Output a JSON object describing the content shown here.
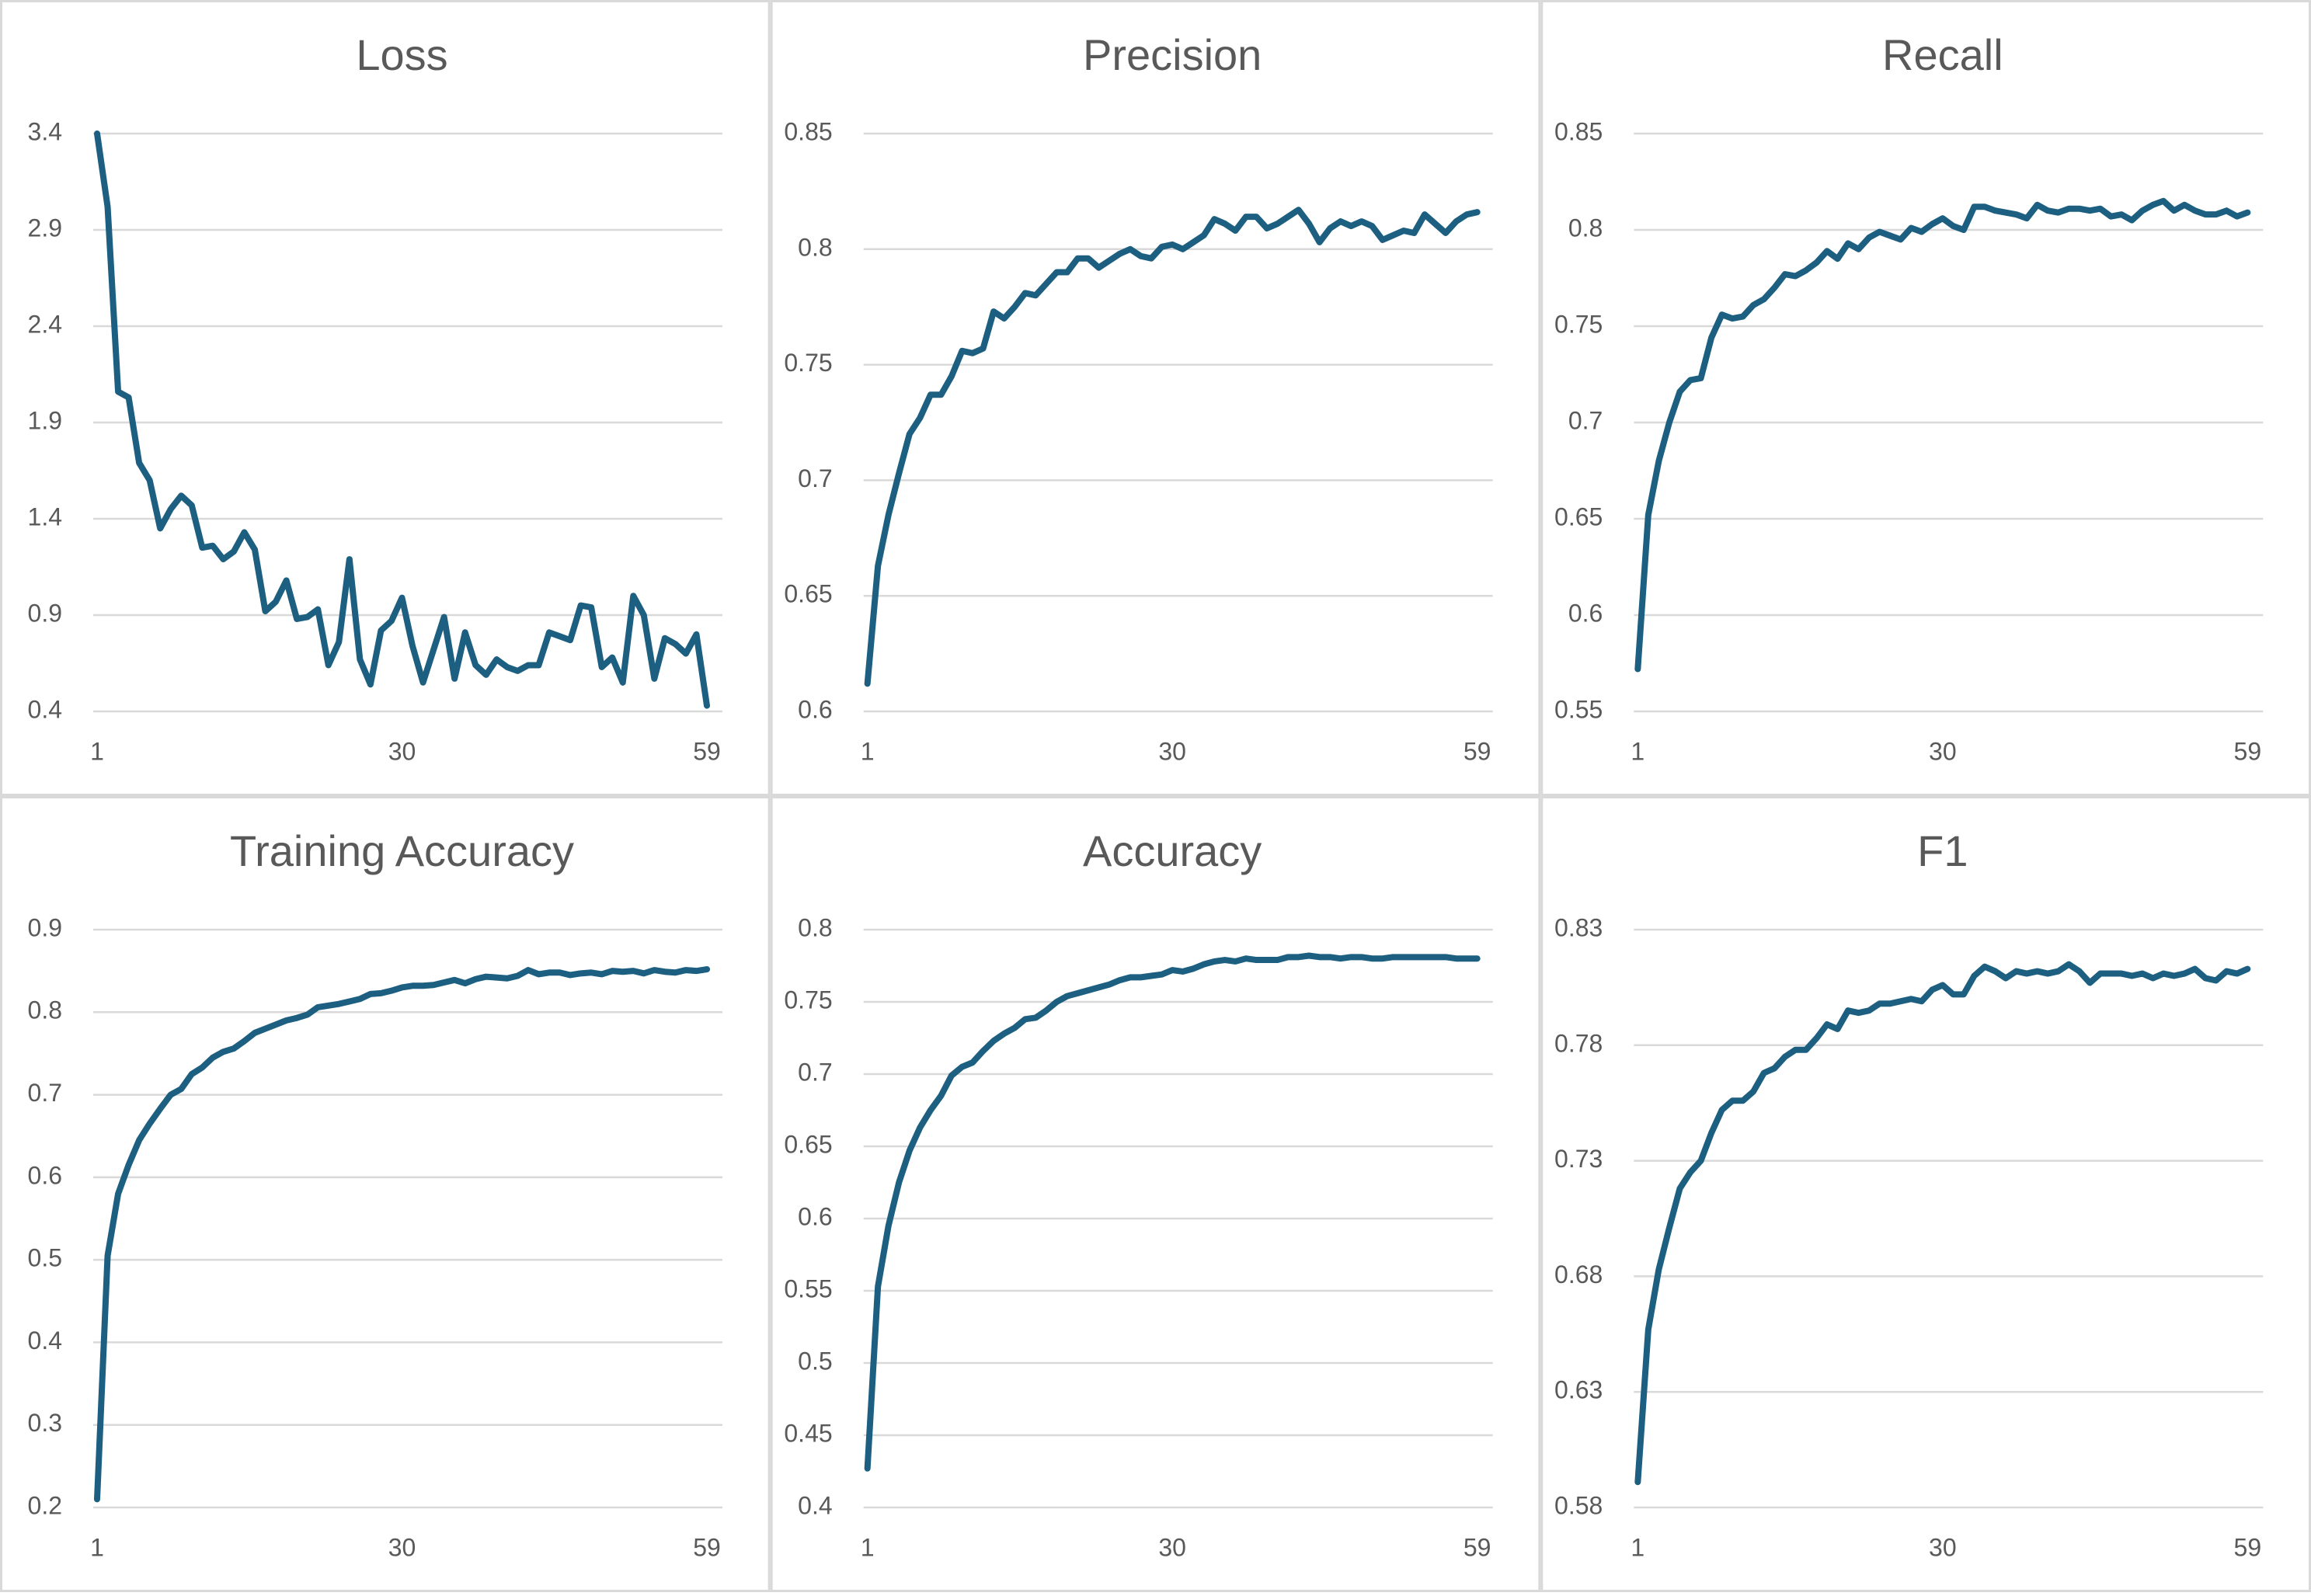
{
  "chart_data": [
    {
      "type": "line",
      "title": "Loss",
      "color": "#1d5f80",
      "grid": true,
      "x": [
        1,
        2,
        3,
        4,
        5,
        6,
        7,
        8,
        9,
        10,
        11,
        12,
        13,
        14,
        15,
        16,
        17,
        18,
        19,
        20,
        21,
        22,
        23,
        24,
        25,
        26,
        27,
        28,
        29,
        30,
        31,
        32,
        33,
        34,
        35,
        36,
        37,
        38,
        39,
        40,
        41,
        42,
        43,
        44,
        45,
        46,
        47,
        48,
        49,
        50,
        51,
        52,
        53,
        54,
        55,
        56,
        57,
        58,
        59
      ],
      "values": [
        3.4,
        3.02,
        2.06,
        2.03,
        1.69,
        1.6,
        1.35,
        1.45,
        1.52,
        1.47,
        1.25,
        1.26,
        1.19,
        1.23,
        1.33,
        1.24,
        0.92,
        0.97,
        1.08,
        0.88,
        0.89,
        0.93,
        0.64,
        0.76,
        1.19,
        0.67,
        0.54,
        0.82,
        0.87,
        0.99,
        0.74,
        0.55,
        0.72,
        0.89,
        0.57,
        0.81,
        0.64,
        0.59,
        0.67,
        0.63,
        0.61,
        0.64,
        0.64,
        0.81,
        0.79,
        0.77,
        0.95,
        0.94,
        0.63,
        0.68,
        0.55,
        1.0,
        0.9,
        0.57,
        0.78,
        0.75,
        0.7,
        0.8,
        0.43
      ],
      "xlim": [
        1,
        59
      ],
      "xticks": [
        1,
        30,
        59
      ],
      "ylim": [
        0.4,
        3.4
      ],
      "yticks": [
        0.4,
        0.9,
        1.4,
        1.9,
        2.4,
        2.9,
        3.4
      ]
    },
    {
      "type": "line",
      "title": "Precision",
      "color": "#1d5f80",
      "grid": true,
      "x": [
        1,
        2,
        3,
        4,
        5,
        6,
        7,
        8,
        9,
        10,
        11,
        12,
        13,
        14,
        15,
        16,
        17,
        18,
        19,
        20,
        21,
        22,
        23,
        24,
        25,
        26,
        27,
        28,
        29,
        30,
        31,
        32,
        33,
        34,
        35,
        36,
        37,
        38,
        39,
        40,
        41,
        42,
        43,
        44,
        45,
        46,
        47,
        48,
        49,
        50,
        51,
        52,
        53,
        54,
        55,
        56,
        57,
        58,
        59
      ],
      "values": [
        0.612,
        0.663,
        0.685,
        0.703,
        0.72,
        0.727,
        0.737,
        0.737,
        0.745,
        0.756,
        0.755,
        0.757,
        0.773,
        0.77,
        0.775,
        0.781,
        0.78,
        0.785,
        0.79,
        0.79,
        0.796,
        0.796,
        0.792,
        0.795,
        0.798,
        0.8,
        0.797,
        0.796,
        0.801,
        0.802,
        0.8,
        0.803,
        0.806,
        0.813,
        0.811,
        0.808,
        0.814,
        0.814,
        0.809,
        0.811,
        0.814,
        0.817,
        0.811,
        0.803,
        0.809,
        0.812,
        0.81,
        0.812,
        0.81,
        0.804,
        0.806,
        0.808,
        0.807,
        0.815,
        0.811,
        0.807,
        0.812,
        0.815,
        0.816
      ],
      "xlim": [
        1,
        59
      ],
      "xticks": [
        1,
        30,
        59
      ],
      "ylim": [
        0.6,
        0.85
      ],
      "yticks": [
        0.6,
        0.65,
        0.7,
        0.75,
        0.8,
        0.85
      ]
    },
    {
      "type": "line",
      "title": "Recall",
      "color": "#1d5f80",
      "grid": true,
      "x": [
        1,
        2,
        3,
        4,
        5,
        6,
        7,
        8,
        9,
        10,
        11,
        12,
        13,
        14,
        15,
        16,
        17,
        18,
        19,
        20,
        21,
        22,
        23,
        24,
        25,
        26,
        27,
        28,
        29,
        30,
        31,
        32,
        33,
        34,
        35,
        36,
        37,
        38,
        39,
        40,
        41,
        42,
        43,
        44,
        45,
        46,
        47,
        48,
        49,
        50,
        51,
        52,
        53,
        54,
        55,
        56,
        57,
        58,
        59
      ],
      "values": [
        0.572,
        0.652,
        0.68,
        0.7,
        0.716,
        0.722,
        0.723,
        0.744,
        0.756,
        0.754,
        0.755,
        0.761,
        0.764,
        0.77,
        0.777,
        0.776,
        0.779,
        0.783,
        0.789,
        0.785,
        0.793,
        0.79,
        0.796,
        0.799,
        0.797,
        0.795,
        0.801,
        0.799,
        0.803,
        0.806,
        0.802,
        0.8,
        0.812,
        0.812,
        0.81,
        0.809,
        0.808,
        0.806,
        0.813,
        0.81,
        0.809,
        0.811,
        0.811,
        0.81,
        0.811,
        0.807,
        0.808,
        0.805,
        0.81,
        0.813,
        0.815,
        0.81,
        0.813,
        0.81,
        0.808,
        0.808,
        0.81,
        0.807,
        0.809
      ],
      "xlim": [
        1,
        59
      ],
      "xticks": [
        1,
        30,
        59
      ],
      "ylim": [
        0.55,
        0.85
      ],
      "yticks": [
        0.55,
        0.6,
        0.65,
        0.7,
        0.75,
        0.8,
        0.85
      ]
    },
    {
      "type": "line",
      "title": "Training Accuracy",
      "color": "#1d5f80",
      "grid": true,
      "x": [
        1,
        2,
        3,
        4,
        5,
        6,
        7,
        8,
        9,
        10,
        11,
        12,
        13,
        14,
        15,
        16,
        17,
        18,
        19,
        20,
        21,
        22,
        23,
        24,
        25,
        26,
        27,
        28,
        29,
        30,
        31,
        32,
        33,
        34,
        35,
        36,
        37,
        38,
        39,
        40,
        41,
        42,
        43,
        44,
        45,
        46,
        47,
        48,
        49,
        50,
        51,
        52,
        53,
        54,
        55,
        56,
        57,
        58,
        59
      ],
      "values": [
        0.21,
        0.505,
        0.58,
        0.615,
        0.645,
        0.665,
        0.683,
        0.7,
        0.707,
        0.725,
        0.733,
        0.745,
        0.752,
        0.756,
        0.765,
        0.775,
        0.78,
        0.785,
        0.79,
        0.793,
        0.797,
        0.806,
        0.808,
        0.81,
        0.813,
        0.816,
        0.822,
        0.823,
        0.826,
        0.83,
        0.832,
        0.832,
        0.833,
        0.836,
        0.839,
        0.835,
        0.84,
        0.843,
        0.842,
        0.841,
        0.844,
        0.851,
        0.846,
        0.848,
        0.848,
        0.845,
        0.847,
        0.848,
        0.846,
        0.85,
        0.849,
        0.85,
        0.847,
        0.851,
        0.849,
        0.848,
        0.851,
        0.85,
        0.852
      ],
      "xlim": [
        1,
        59
      ],
      "xticks": [
        1,
        30,
        59
      ],
      "ylim": [
        0.2,
        0.9
      ],
      "yticks": [
        0.2,
        0.3,
        0.4,
        0.5,
        0.6,
        0.7,
        0.8,
        0.9
      ]
    },
    {
      "type": "line",
      "title": "Accuracy",
      "color": "#1d5f80",
      "grid": true,
      "x": [
        1,
        2,
        3,
        4,
        5,
        6,
        7,
        8,
        9,
        10,
        11,
        12,
        13,
        14,
        15,
        16,
        17,
        18,
        19,
        20,
        21,
        22,
        23,
        24,
        25,
        26,
        27,
        28,
        29,
        30,
        31,
        32,
        33,
        34,
        35,
        36,
        37,
        38,
        39,
        40,
        41,
        42,
        43,
        44,
        45,
        46,
        47,
        48,
        49,
        50,
        51,
        52,
        53,
        54,
        55,
        56,
        57,
        58,
        59
      ],
      "values": [
        0.427,
        0.553,
        0.595,
        0.625,
        0.647,
        0.663,
        0.675,
        0.685,
        0.699,
        0.705,
        0.708,
        0.716,
        0.723,
        0.728,
        0.732,
        0.738,
        0.739,
        0.744,
        0.75,
        0.754,
        0.756,
        0.758,
        0.76,
        0.762,
        0.765,
        0.767,
        0.767,
        0.768,
        0.769,
        0.772,
        0.771,
        0.773,
        0.776,
        0.778,
        0.779,
        0.778,
        0.78,
        0.779,
        0.779,
        0.779,
        0.781,
        0.781,
        0.782,
        0.781,
        0.781,
        0.78,
        0.781,
        0.781,
        0.78,
        0.78,
        0.781,
        0.781,
        0.781,
        0.781,
        0.781,
        0.781,
        0.78,
        0.78,
        0.78
      ],
      "xlim": [
        1,
        59
      ],
      "xticks": [
        1,
        30,
        59
      ],
      "ylim": [
        0.4,
        0.8
      ],
      "yticks": [
        0.4,
        0.45,
        0.5,
        0.55,
        0.6,
        0.65,
        0.7,
        0.75,
        0.8
      ]
    },
    {
      "type": "line",
      "title": "F1",
      "color": "#1d5f80",
      "grid": true,
      "x": [
        1,
        2,
        3,
        4,
        5,
        6,
        7,
        8,
        9,
        10,
        11,
        12,
        13,
        14,
        15,
        16,
        17,
        18,
        19,
        20,
        21,
        22,
        23,
        24,
        25,
        26,
        27,
        28,
        29,
        30,
        31,
        32,
        33,
        34,
        35,
        36,
        37,
        38,
        39,
        40,
        41,
        42,
        43,
        44,
        45,
        46,
        47,
        48,
        49,
        50,
        51,
        52,
        53,
        54,
        55,
        56,
        57,
        58,
        59
      ],
      "values": [
        0.591,
        0.657,
        0.683,
        0.701,
        0.718,
        0.725,
        0.73,
        0.742,
        0.752,
        0.756,
        0.756,
        0.76,
        0.768,
        0.77,
        0.775,
        0.778,
        0.778,
        0.783,
        0.789,
        0.787,
        0.795,
        0.794,
        0.795,
        0.798,
        0.798,
        0.799,
        0.8,
        0.799,
        0.804,
        0.806,
        0.802,
        0.802,
        0.81,
        0.814,
        0.812,
        0.809,
        0.812,
        0.811,
        0.812,
        0.811,
        0.812,
        0.815,
        0.812,
        0.807,
        0.811,
        0.811,
        0.811,
        0.81,
        0.811,
        0.809,
        0.811,
        0.81,
        0.811,
        0.813,
        0.809,
        0.808,
        0.812,
        0.811,
        0.813
      ],
      "xlim": [
        1,
        59
      ],
      "xticks": [
        1,
        30,
        59
      ],
      "ylim": [
        0.58,
        0.83
      ],
      "yticks": [
        0.58,
        0.63,
        0.68,
        0.73,
        0.78,
        0.83
      ]
    }
  ]
}
